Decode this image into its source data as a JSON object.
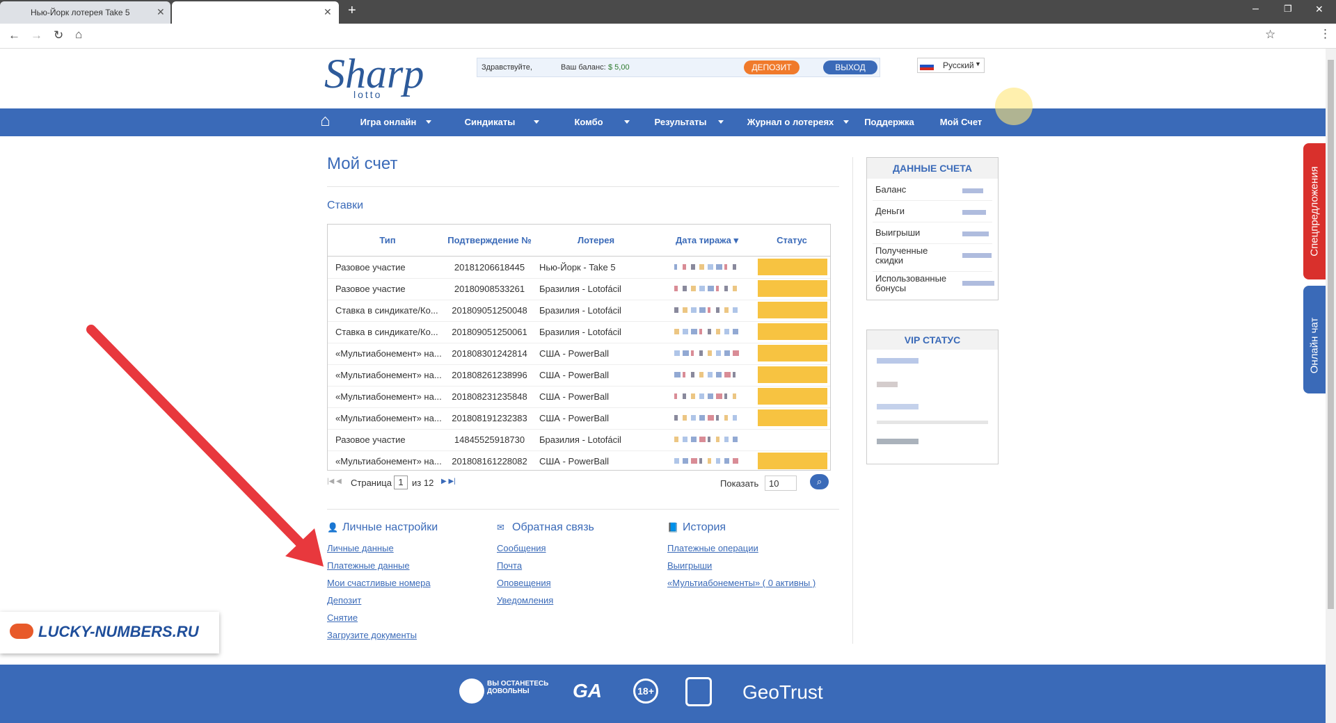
{
  "browser": {
    "tab_title": "Нью-Йорк лотерея Take 5"
  },
  "header": {
    "logo": "Sharp",
    "logo_sub": "lotto",
    "greeting": "Здравствуйте,",
    "balance_label": "Ваш баланс:",
    "balance": "$ 5,00",
    "deposit": "ДЕПОЗИТ",
    "exit": "ВЫХОД",
    "language": "Русский"
  },
  "nav": [
    "Игра онлайн",
    "Синдикаты",
    "Комбо",
    "Результаты",
    "Журнал о лотереях",
    "Поддержка",
    "Мой Счет"
  ],
  "page": {
    "title": "Мой счет",
    "section": "Ставки"
  },
  "table": {
    "headers": [
      "Тип",
      "Подтверждение №",
      "Лотерея",
      "Дата тиража ▾",
      "Статус"
    ],
    "rows": [
      [
        "Разовое участие",
        "20181206618445",
        "Нью-Йорк - Take 5"
      ],
      [
        "Разовое участие",
        "20180908533261",
        "Бразилия - Lotofácil"
      ],
      [
        "Ставка в синдикате/Ко...",
        "201809051250048",
        "Бразилия - Lotofácil"
      ],
      [
        "Ставка в синдикате/Ко...",
        "201809051250061",
        "Бразилия - Lotofácil"
      ],
      [
        "«Мультиабонемент» на...",
        "201808301242814",
        "США - PowerBall"
      ],
      [
        "«Мультиабонемент» на...",
        "201808261238996",
        "США - PowerBall"
      ],
      [
        "«Мультиабонемент» на...",
        "201808231235848",
        "США - PowerBall"
      ],
      [
        "«Мультиабонемент» на...",
        "201808191232383",
        "США - PowerBall"
      ],
      [
        "Разовое участие",
        "14845525918730",
        "Бразилия - Lotofácil"
      ],
      [
        "«Мультиабонемент» на...",
        "201808161228082",
        "США - PowerBall"
      ]
    ]
  },
  "pagination": {
    "page_label": "Страница",
    "page": "1",
    "of": "из 12",
    "show_label": "Показать",
    "show": "10"
  },
  "links": [
    {
      "title": "Личные настройки",
      "items": [
        "Личные данные",
        "Платежные данные",
        "Мои счастливые номера",
        "Депозит",
        "Снятие",
        "Загрузите документы"
      ]
    },
    {
      "title": "Обратная связь",
      "items": [
        "Сообщения",
        "Почта",
        "Оповещения",
        "Уведомления"
      ]
    },
    {
      "title": "История",
      "items": [
        "Платежные операции",
        "Выигрыши",
        "«Мультиабонементы» ( 0 активны )"
      ]
    }
  ],
  "sidebar": {
    "account_title": "ДАННЫЕ СЧЕТА",
    "account_rows": [
      "Баланс",
      "Деньги",
      "Выигрыши",
      "Полученные скидки",
      "Использованные бонусы"
    ],
    "vip_title": "VIP СТАТУС"
  },
  "side_tabs": [
    "Спецпредложения",
    "Онлайн чат"
  ],
  "watermark": "LUCKY-NUMBERS.RU",
  "footer": {
    "badge": "ВЫ ОСТАНЕТЕСЬ ДОВОЛЬНЫ",
    "age": "18+",
    "geotrust": "GeoTrust"
  }
}
